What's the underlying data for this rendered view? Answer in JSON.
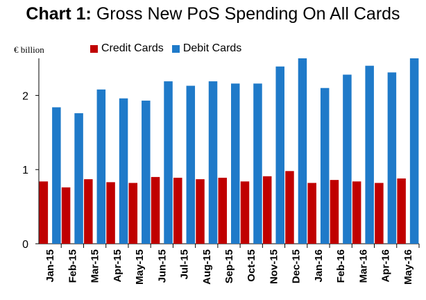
{
  "title_prefix": "Chart 1:",
  "title_rest": "Gross New PoS Spending On All Cards",
  "unit_label": "€ billion",
  "chart_data": {
    "type": "bar",
    "title": "Chart 1: Gross New PoS Spending On All Cards",
    "ylabel": "€ billion",
    "xlabel": "",
    "ylim": [
      0,
      2.5
    ],
    "yticks": [
      0,
      1,
      2
    ],
    "grid": false,
    "legend": "top-left",
    "categories": [
      "Jan-15",
      "Feb-15",
      "Mar-15",
      "Apr-15",
      "May-15",
      "Jun-15",
      "Jul-15",
      "Aug-15",
      "Sep-15",
      "Oct-15",
      "Nov-15",
      "Dec-15",
      "Jan-16",
      "Feb-16",
      "Mar-16",
      "Apr-16",
      "May-16"
    ],
    "series": [
      {
        "name": "Credit Cards",
        "color": "#c00000",
        "values": [
          0.84,
          0.76,
          0.87,
          0.83,
          0.82,
          0.9,
          0.89,
          0.87,
          0.89,
          0.84,
          0.91,
          0.98,
          0.82,
          0.86,
          0.84,
          0.82,
          0.88
        ]
      },
      {
        "name": "Debit Cards",
        "color": "#1f7ac9",
        "values": [
          1.84,
          1.76,
          2.08,
          1.96,
          1.93,
          2.19,
          2.13,
          2.19,
          2.16,
          2.16,
          2.39,
          2.5,
          2.1,
          2.28,
          2.4,
          2.31,
          2.5
        ]
      }
    ]
  }
}
